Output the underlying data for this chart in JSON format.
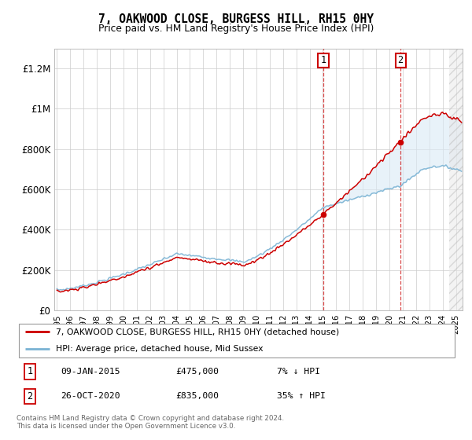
{
  "title": "7, OAKWOOD CLOSE, BURGESS HILL, RH15 0HY",
  "subtitle": "Price paid vs. HM Land Registry's House Price Index (HPI)",
  "ylabel_ticks": [
    "£0",
    "£200K",
    "£400K",
    "£600K",
    "£800K",
    "£1M",
    "£1.2M"
  ],
  "ytick_vals": [
    0,
    200000,
    400000,
    600000,
    800000,
    1000000,
    1200000
  ],
  "ylim": [
    0,
    1300000
  ],
  "xlim_start": 1995.0,
  "xlim_end": 2025.5,
  "sale1_year": 2015.03,
  "sale1_price": 475000,
  "sale1_label": "09-JAN-2015",
  "sale1_pct": "7% ↓ HPI",
  "sale2_year": 2020.83,
  "sale2_price": 835000,
  "sale2_label": "26-OCT-2020",
  "sale2_pct": "35% ↑ HPI",
  "hpi_color": "#7ab3d4",
  "price_color": "#cc0000",
  "shade_color": "#daeaf5",
  "legend_label_price": "7, OAKWOOD CLOSE, BURGESS HILL, RH15 0HY (detached house)",
  "legend_label_hpi": "HPI: Average price, detached house, Mid Sussex",
  "footer": "Contains HM Land Registry data © Crown copyright and database right 2024.\nThis data is licensed under the Open Government Licence v3.0.",
  "hatch_region_start": 2024.5,
  "hatch_region_end": 2026.0,
  "box1_label": "1",
  "box2_label": "2"
}
